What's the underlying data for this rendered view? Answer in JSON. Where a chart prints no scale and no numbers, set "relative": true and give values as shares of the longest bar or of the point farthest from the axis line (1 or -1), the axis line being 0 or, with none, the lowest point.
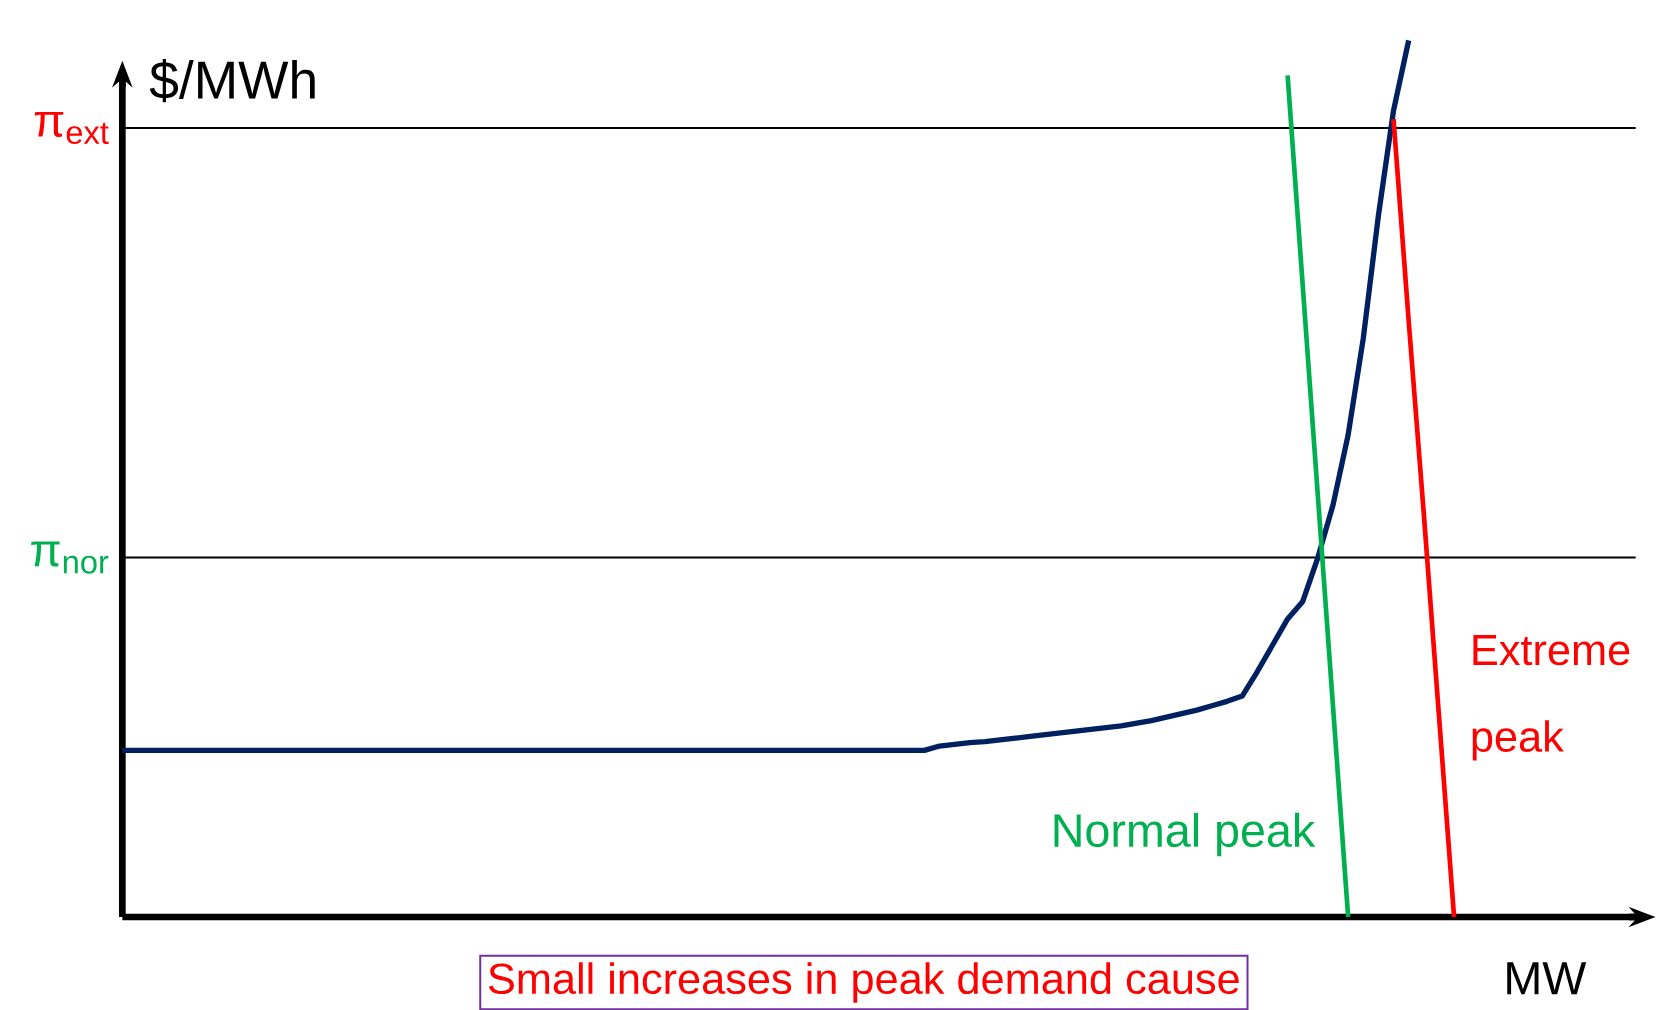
{
  "chart_data": {
    "type": "line",
    "relative": true,
    "ylabel": "$/MWh",
    "xlabel": "MW",
    "categories": [
      null,
      null,
      null,
      null,
      null,
      null,
      null,
      null,
      null,
      null,
      null,
      null,
      null,
      null,
      null,
      null,
      null,
      null,
      null,
      null,
      null,
      null,
      null,
      null,
      null,
      null,
      null,
      null,
      null,
      null,
      null,
      null,
      null,
      null,
      null,
      null,
      null,
      null,
      null,
      null,
      null,
      null,
      null,
      null,
      null,
      null,
      null,
      null,
      null,
      null,
      null,
      null,
      null,
      null,
      null,
      null,
      null,
      null,
      null,
      null,
      null,
      null,
      null,
      null,
      null,
      null,
      null,
      null,
      null,
      null,
      null,
      null,
      null,
      null,
      null,
      null,
      null,
      null,
      null,
      null,
      null,
      null,
      null,
      null,
      null,
      null,
      null,
      null,
      null,
      null,
      null,
      null,
      null,
      null,
      null,
      null,
      null,
      null,
      null,
      null,
      null
    ],
    "series": [
      {
        "color": "#002060",
        "values": [
          0.19,
          0.19,
          0.19,
          0.19,
          0.19,
          0.19,
          0.19,
          0.19,
          0.19,
          0.19,
          0.19,
          0.19,
          0.19,
          0.19,
          0.19,
          0.19,
          0.19,
          0.19,
          0.19,
          0.19,
          0.19,
          0.19,
          0.19,
          0.19,
          0.19,
          0.19,
          0.19,
          0.19,
          0.19,
          0.19,
          0.19,
          0.19,
          0.19,
          0.19,
          0.19,
          0.19,
          0.19,
          0.19,
          0.19,
          0.19,
          0.19,
          0.19,
          0.19,
          0.19,
          0.19,
          0.19,
          0.19,
          0.19,
          0.19,
          0.19,
          0.19,
          0.19,
          0.19,
          0.19,
          0.195,
          0.197,
          0.199,
          0.2,
          0.202,
          0.204,
          0.206,
          0.208,
          0.21,
          0.212,
          0.214,
          0.216,
          0.218,
          0.221,
          0.224,
          0.228,
          0.232,
          0.236,
          0.241,
          0.246,
          0.252,
          0.28,
          0.31,
          0.34,
          0.36,
          0.41,
          0.47,
          0.55,
          0.66,
          0.8,
          0.92,
          1.0,
          null,
          null,
          null,
          null,
          null,
          null,
          null,
          null,
          null,
          null,
          null,
          null,
          null,
          null,
          null
        ]
      },
      {
        "name": "Normal peak",
        "color": "#00b050",
        "values": [
          null,
          null,
          null,
          null,
          null,
          null,
          null,
          null,
          null,
          null,
          null,
          null,
          null,
          null,
          null,
          null,
          null,
          null,
          null,
          null,
          null,
          null,
          null,
          null,
          null,
          null,
          null,
          null,
          null,
          null,
          null,
          null,
          null,
          null,
          null,
          null,
          null,
          null,
          null,
          null,
          null,
          null,
          null,
          null,
          null,
          null,
          null,
          null,
          null,
          null,
          null,
          null,
          null,
          null,
          null,
          null,
          null,
          null,
          null,
          null,
          null,
          null,
          null,
          null,
          null,
          null,
          null,
          null,
          null,
          null,
          null,
          null,
          null,
          null,
          null,
          null,
          null,
          0.96,
          0.72,
          0.48,
          0.24,
          0,
          null,
          null,
          null,
          null,
          null,
          null,
          null,
          null,
          null,
          null,
          null,
          null,
          null,
          null,
          null,
          null,
          null,
          null,
          null
        ]
      },
      {
        "name": "Extreme peak",
        "color": "#ff0000",
        "values": [
          null,
          null,
          null,
          null,
          null,
          null,
          null,
          null,
          null,
          null,
          null,
          null,
          null,
          null,
          null,
          null,
          null,
          null,
          null,
          null,
          null,
          null,
          null,
          null,
          null,
          null,
          null,
          null,
          null,
          null,
          null,
          null,
          null,
          null,
          null,
          null,
          null,
          null,
          null,
          null,
          null,
          null,
          null,
          null,
          null,
          null,
          null,
          null,
          null,
          null,
          null,
          null,
          null,
          null,
          null,
          null,
          null,
          null,
          null,
          null,
          null,
          null,
          null,
          null,
          null,
          null,
          null,
          null,
          null,
          null,
          null,
          null,
          null,
          null,
          null,
          null,
          null,
          null,
          null,
          null,
          null,
          null,
          null,
          null,
          0.91,
          0.68,
          0.46,
          0.23,
          0,
          null,
          null,
          null,
          null,
          null,
          null,
          null,
          null,
          null,
          null,
          null,
          null
        ]
      }
    ],
    "ref_lines": [
      {
        "axis": "y",
        "value": 0.41,
        "label": "π$_{nor}$",
        "color": "#000000"
      },
      {
        "axis": "y",
        "value": 0.9,
        "label": "π$_{ext}$",
        "color": "#000000"
      }
    ],
    "annotations": [
      "Small increases in peak demand cause"
    ],
    "legend": false,
    "marker": "none",
    "line_style": "solid"
  }
}
